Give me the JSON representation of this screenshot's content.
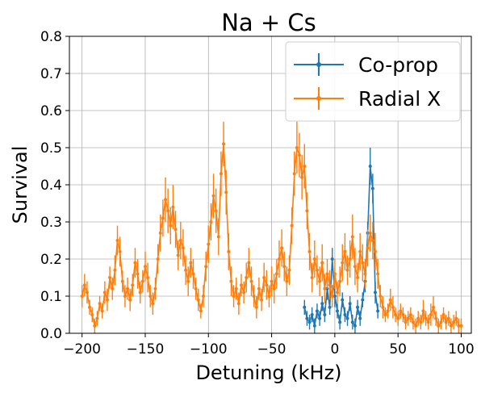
{
  "chart_data": {
    "type": "line",
    "title": "Na + Cs",
    "xlabel": "Detuning (kHz)",
    "ylabel": "Survival",
    "xlim": [
      -210,
      108
    ],
    "ylim": [
      0,
      0.8
    ],
    "xticks": [
      -200,
      -150,
      -100,
      -50,
      0,
      50,
      100
    ],
    "xtick_labels": [
      "−200",
      "−150",
      "−100",
      "−50",
      "0",
      "50",
      "100"
    ],
    "yticks": [
      0.0,
      0.1,
      0.2,
      0.3,
      0.4,
      0.5,
      0.6,
      0.7,
      0.8
    ],
    "ytick_labels": [
      "0.0",
      "0.1",
      "0.2",
      "0.3",
      "0.4",
      "0.5",
      "0.6",
      "0.7",
      "0.8"
    ],
    "grid": true,
    "legend_position": "top-right",
    "series": [
      {
        "name": "Co-prop",
        "color": "#1f77b4",
        "x": [
          -24,
          -22,
          -20,
          -18,
          -16,
          -14,
          -12,
          -10,
          -8,
          -6,
          -4,
          -2,
          0,
          2,
          4,
          6,
          8,
          10,
          12,
          14,
          16,
          18,
          20,
          22,
          24,
          26,
          28,
          30,
          32,
          34
        ],
        "y": [
          0.07,
          0.04,
          0.03,
          0.05,
          0.02,
          0.06,
          0.04,
          0.08,
          0.05,
          0.12,
          0.07,
          0.2,
          0.1,
          0.06,
          0.03,
          0.09,
          0.05,
          0.04,
          0.08,
          0.03,
          0.02,
          0.07,
          0.04,
          0.09,
          0.14,
          0.27,
          0.45,
          0.39,
          0.11,
          0.06
        ],
        "err": [
          0.02,
          0.02,
          0.02,
          0.02,
          0.02,
          0.02,
          0.02,
          0.02,
          0.02,
          0.03,
          0.02,
          0.03,
          0.03,
          0.02,
          0.02,
          0.02,
          0.02,
          0.02,
          0.02,
          0.02,
          0.02,
          0.02,
          0.02,
          0.02,
          0.03,
          0.03,
          0.05,
          0.04,
          0.03,
          0.02
        ]
      },
      {
        "name": "Radial X",
        "color": "#ff7f0e",
        "x": [
          -200,
          -198,
          -196,
          -194,
          -192,
          -190,
          -188,
          -186,
          -184,
          -182,
          -180,
          -178,
          -176,
          -174,
          -172,
          -170,
          -168,
          -166,
          -164,
          -162,
          -160,
          -158,
          -156,
          -154,
          -152,
          -150,
          -148,
          -146,
          -144,
          -142,
          -140,
          -138,
          -136,
          -134,
          -132,
          -130,
          -128,
          -126,
          -124,
          -122,
          -120,
          -118,
          -116,
          -114,
          -112,
          -110,
          -108,
          -106,
          -104,
          -102,
          -100,
          -98,
          -96,
          -94,
          -92,
          -90,
          -88,
          -86,
          -84,
          -82,
          -80,
          -78,
          -76,
          -74,
          -72,
          -70,
          -68,
          -66,
          -64,
          -62,
          -60,
          -58,
          -56,
          -54,
          -52,
          -50,
          -48,
          -46,
          -44,
          -42,
          -40,
          -38,
          -36,
          -34,
          -32,
          -30,
          -28,
          -26,
          -24,
          -22,
          -20,
          -18,
          -16,
          -14,
          -12,
          -10,
          -8,
          -6,
          -4,
          -2,
          0,
          2,
          4,
          6,
          8,
          10,
          12,
          14,
          16,
          18,
          20,
          22,
          24,
          26,
          28,
          30,
          32,
          34,
          36,
          38,
          40,
          42,
          44,
          46,
          48,
          50,
          52,
          54,
          56,
          58,
          60,
          62,
          64,
          66,
          68,
          70,
          72,
          74,
          76,
          78,
          80,
          82,
          84,
          86,
          88,
          90,
          92,
          94,
          96,
          98,
          100
        ],
        "y": [
          0.1,
          0.13,
          0.11,
          0.07,
          0.05,
          0.02,
          0.04,
          0.08,
          0.06,
          0.11,
          0.09,
          0.15,
          0.12,
          0.17,
          0.25,
          0.22,
          0.14,
          0.1,
          0.12,
          0.09,
          0.13,
          0.19,
          0.16,
          0.11,
          0.14,
          0.18,
          0.15,
          0.1,
          0.08,
          0.12,
          0.2,
          0.27,
          0.31,
          0.36,
          0.33,
          0.29,
          0.34,
          0.28,
          0.21,
          0.25,
          0.23,
          0.17,
          0.14,
          0.19,
          0.16,
          0.12,
          0.09,
          0.06,
          0.1,
          0.18,
          0.24,
          0.3,
          0.37,
          0.33,
          0.26,
          0.43,
          0.51,
          0.38,
          0.22,
          0.14,
          0.1,
          0.12,
          0.08,
          0.13,
          0.11,
          0.15,
          0.19,
          0.14,
          0.1,
          0.07,
          0.12,
          0.09,
          0.15,
          0.13,
          0.1,
          0.14,
          0.12,
          0.16,
          0.2,
          0.23,
          0.18,
          0.14,
          0.17,
          0.29,
          0.43,
          0.5,
          0.48,
          0.42,
          0.45,
          0.33,
          0.22,
          0.15,
          0.2,
          0.17,
          0.14,
          0.19,
          0.12,
          0.16,
          0.13,
          0.1,
          0.16,
          0.11,
          0.14,
          0.19,
          0.22,
          0.17,
          0.2,
          0.26,
          0.18,
          0.15,
          0.22,
          0.19,
          0.16,
          0.23,
          0.27,
          0.25,
          0.22,
          0.16,
          0.1,
          0.07,
          0.05,
          0.06,
          0.09,
          0.07,
          0.05,
          0.04,
          0.06,
          0.05,
          0.03,
          0.04,
          0.05,
          0.03,
          0.02,
          0.04,
          0.03,
          0.06,
          0.04,
          0.03,
          0.05,
          0.07,
          0.04,
          0.02,
          0.03,
          0.05,
          0.03,
          0.04,
          0.02,
          0.03,
          0.04,
          0.02,
          0.02
        ],
        "err": [
          0.03,
          0.03,
          0.03,
          0.02,
          0.02,
          0.02,
          0.02,
          0.02,
          0.02,
          0.03,
          0.03,
          0.03,
          0.03,
          0.04,
          0.04,
          0.04,
          0.03,
          0.03,
          0.03,
          0.03,
          0.03,
          0.04,
          0.04,
          0.03,
          0.03,
          0.04,
          0.04,
          0.03,
          0.03,
          0.03,
          0.04,
          0.05,
          0.05,
          0.06,
          0.06,
          0.05,
          0.06,
          0.05,
          0.04,
          0.05,
          0.05,
          0.04,
          0.04,
          0.04,
          0.04,
          0.03,
          0.03,
          0.02,
          0.03,
          0.04,
          0.05,
          0.05,
          0.06,
          0.06,
          0.05,
          0.06,
          0.06,
          0.06,
          0.05,
          0.04,
          0.03,
          0.03,
          0.03,
          0.03,
          0.03,
          0.04,
          0.04,
          0.04,
          0.03,
          0.03,
          0.03,
          0.03,
          0.04,
          0.04,
          0.03,
          0.04,
          0.04,
          0.04,
          0.05,
          0.05,
          0.04,
          0.04,
          0.04,
          0.05,
          0.06,
          0.07,
          0.06,
          0.06,
          0.06,
          0.05,
          0.05,
          0.04,
          0.05,
          0.04,
          0.04,
          0.05,
          0.04,
          0.04,
          0.04,
          0.03,
          0.04,
          0.03,
          0.04,
          0.05,
          0.05,
          0.04,
          0.05,
          0.06,
          0.05,
          0.04,
          0.05,
          0.05,
          0.04,
          0.05,
          0.05,
          0.05,
          0.05,
          0.04,
          0.03,
          0.03,
          0.02,
          0.02,
          0.03,
          0.03,
          0.02,
          0.02,
          0.02,
          0.02,
          0.02,
          0.02,
          0.02,
          0.02,
          0.02,
          0.02,
          0.02,
          0.03,
          0.02,
          0.02,
          0.03,
          0.03,
          0.02,
          0.02,
          0.02,
          0.02,
          0.02,
          0.02,
          0.02,
          0.02,
          0.02,
          0.02,
          0.02
        ]
      }
    ]
  }
}
